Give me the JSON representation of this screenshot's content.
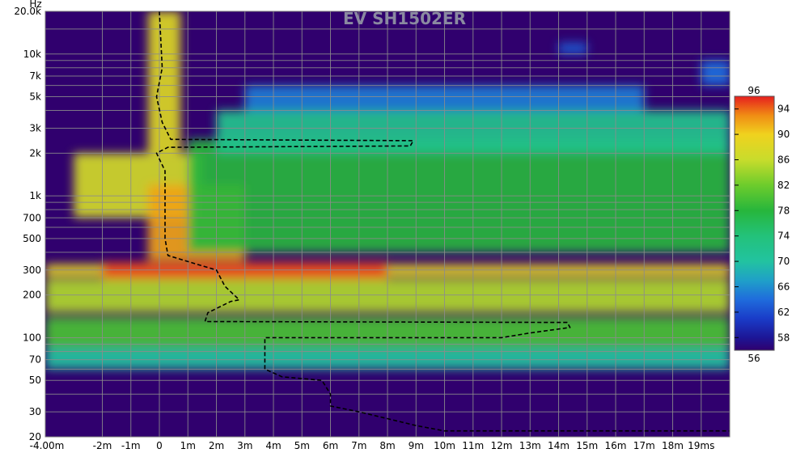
{
  "chart_data": {
    "type": "heatmap",
    "subtype": "wavelet-spectrogram",
    "title": "EV SH1502ER",
    "x_unit_note": "time in seconds; tick labels use m for milliseconds",
    "xlim": [
      -0.004,
      0.02
    ],
    "ylim": [
      20,
      20000
    ],
    "y_scale": "log",
    "y_unit_label": "Hz",
    "x_ticks": [
      {
        "value": -0.004,
        "label": "-4.00m"
      },
      {
        "value": -0.002,
        "label": "-2m"
      },
      {
        "value": -0.001,
        "label": "-1m"
      },
      {
        "value": 0,
        "label": "0"
      },
      {
        "value": 0.001,
        "label": "1m"
      },
      {
        "value": 0.002,
        "label": "2m"
      },
      {
        "value": 0.003,
        "label": "3m"
      },
      {
        "value": 0.004,
        "label": "4m"
      },
      {
        "value": 0.005,
        "label": "5m"
      },
      {
        "value": 0.006,
        "label": "6m"
      },
      {
        "value": 0.007,
        "label": "7m"
      },
      {
        "value": 0.008,
        "label": "8m"
      },
      {
        "value": 0.009,
        "label": "9m"
      },
      {
        "value": 0.01,
        "label": "10m"
      },
      {
        "value": 0.011,
        "label": "11m"
      },
      {
        "value": 0.012,
        "label": "12m"
      },
      {
        "value": 0.013,
        "label": "13m"
      },
      {
        "value": 0.014,
        "label": "14m"
      },
      {
        "value": 0.015,
        "label": "15m"
      },
      {
        "value": 0.016,
        "label": "16m"
      },
      {
        "value": 0.017,
        "label": "17m"
      },
      {
        "value": 0.018,
        "label": "18m"
      },
      {
        "value": 0.019,
        "label": "19ms"
      }
    ],
    "y_ticks": [
      {
        "value": 20000,
        "label": "20.0k"
      },
      {
        "value": 10000,
        "label": "10k"
      },
      {
        "value": 7000,
        "label": "7k"
      },
      {
        "value": 5000,
        "label": "5k"
      },
      {
        "value": 3000,
        "label": "3k"
      },
      {
        "value": 2000,
        "label": "2k"
      },
      {
        "value": 1000,
        "label": "1k"
      },
      {
        "value": 700,
        "label": "700"
      },
      {
        "value": 500,
        "label": "500"
      },
      {
        "value": 300,
        "label": "300"
      },
      {
        "value": 200,
        "label": "200"
      },
      {
        "value": 100,
        "label": "100"
      },
      {
        "value": 70,
        "label": "70"
      },
      {
        "value": 50,
        "label": "50"
      },
      {
        "value": 30,
        "label": "30"
      },
      {
        "value": 20,
        "label": "20"
      }
    ],
    "y_minor_ticks": [
      15000,
      9000,
      8000,
      6000,
      4000,
      900,
      800,
      600,
      400,
      90,
      80,
      60,
      40
    ],
    "colorbar": {
      "min": 56,
      "max": 96,
      "min_label": "56",
      "max_label": "96",
      "tick_values": [
        94,
        90,
        86,
        82,
        78,
        74,
        70,
        66,
        62,
        58
      ],
      "stops": [
        {
          "value": 56,
          "color": "#30006e"
        },
        {
          "value": 58,
          "color": "#1c1696"
        },
        {
          "value": 61,
          "color": "#1a3cc8"
        },
        {
          "value": 64,
          "color": "#1f6cdc"
        },
        {
          "value": 67,
          "color": "#1fa0c8"
        },
        {
          "value": 70,
          "color": "#22c3a0"
        },
        {
          "value": 74,
          "color": "#23c27a"
        },
        {
          "value": 78,
          "color": "#27b63c"
        },
        {
          "value": 82,
          "color": "#6dcc2c"
        },
        {
          "value": 86,
          "color": "#c8dc2c"
        },
        {
          "value": 90,
          "color": "#f0d21e"
        },
        {
          "value": 93,
          "color": "#f08c14"
        },
        {
          "value": 96,
          "color": "#e61e1e"
        }
      ]
    },
    "heatmap_background_level": 56,
    "energy_features": [
      {
        "t_start": -0.0004,
        "t_end": 0.00075,
        "f_low": 2000,
        "f_high": 20000,
        "level": 88
      },
      {
        "t_start": -0.003,
        "t_end": 0.0015,
        "f_low": 700,
        "f_high": 2000,
        "level": 87
      },
      {
        "t_start": -0.0004,
        "t_end": 0.003,
        "f_low": 350,
        "f_high": 1200,
        "level": 92
      },
      {
        "t_start": -0.004,
        "t_end": 0.02,
        "f_low": 270,
        "f_high": 330,
        "level": 89
      },
      {
        "t_start": -0.002,
        "t_end": 0.008,
        "f_low": 250,
        "f_high": 340,
        "level": 95
      },
      {
        "t_start": -0.004,
        "t_end": 0.02,
        "f_low": 150,
        "f_high": 260,
        "level": 85
      },
      {
        "t_start": -0.004,
        "t_end": 0.02,
        "f_low": 85,
        "f_high": 140,
        "level": 80
      },
      {
        "t_start": -0.004,
        "t_end": 0.02,
        "f_low": 60,
        "f_high": 85,
        "level": 70
      },
      {
        "t_start": 0.001,
        "t_end": 0.02,
        "f_low": 400,
        "f_high": 2500,
        "level": 78
      },
      {
        "t_start": 0.002,
        "t_end": 0.02,
        "f_low": 2000,
        "f_high": 4000,
        "level": 72
      },
      {
        "t_start": 0.003,
        "t_end": 0.017,
        "f_low": 4000,
        "f_high": 6000,
        "level": 65
      },
      {
        "t_start": 0.014,
        "t_end": 0.015,
        "f_low": 10000,
        "f_high": 12000,
        "level": 63
      },
      {
        "t_start": 0.019,
        "t_end": 0.02,
        "f_low": 6000,
        "f_high": 9000,
        "level": 64
      }
    ],
    "ridge_line": {
      "style": "dashed",
      "points": [
        {
          "t": 0.0,
          "f": 20000
        },
        {
          "t": 0.0001,
          "f": 8000
        },
        {
          "t": -0.0001,
          "f": 5000
        },
        {
          "t": 0.0001,
          "f": 3300
        },
        {
          "t": 0.0004,
          "f": 2500
        },
        {
          "t": 0.0089,
          "f": 2450
        },
        {
          "t": 0.0088,
          "f": 2250
        },
        {
          "t": 0.0003,
          "f": 2200
        },
        {
          "t": -0.0001,
          "f": 2000
        },
        {
          "t": 0.0002,
          "f": 1500
        },
        {
          "t": 0.0002,
          "f": 900
        },
        {
          "t": 0.0002,
          "f": 500
        },
        {
          "t": 0.0003,
          "f": 380
        },
        {
          "t": 0.0013,
          "f": 330
        },
        {
          "t": 0.002,
          "f": 300
        },
        {
          "t": 0.0023,
          "f": 230
        },
        {
          "t": 0.0028,
          "f": 185
        },
        {
          "t": 0.0025,
          "f": 180
        },
        {
          "t": 0.0017,
          "f": 150
        },
        {
          "t": 0.0016,
          "f": 130
        },
        {
          "t": 0.0143,
          "f": 128
        },
        {
          "t": 0.0144,
          "f": 118
        },
        {
          "t": 0.013,
          "f": 108
        },
        {
          "t": 0.012,
          "f": 100
        },
        {
          "t": 0.0037,
          "f": 100
        },
        {
          "t": 0.0037,
          "f": 60
        },
        {
          "t": 0.0043,
          "f": 53
        },
        {
          "t": 0.0057,
          "f": 50
        },
        {
          "t": 0.006,
          "f": 40
        },
        {
          "t": 0.006,
          "f": 33
        },
        {
          "t": 0.007,
          "f": 30
        },
        {
          "t": 0.009,
          "f": 24
        },
        {
          "t": 0.01,
          "f": 22
        },
        {
          "t": 0.02,
          "f": 22
        }
      ]
    }
  }
}
